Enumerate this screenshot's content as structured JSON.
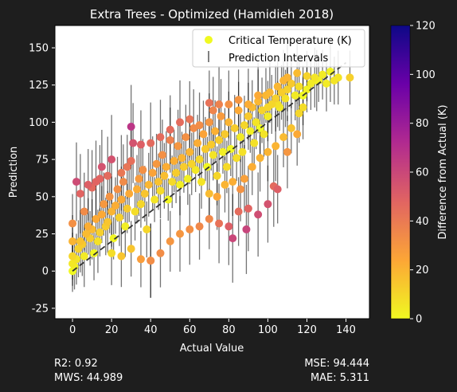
{
  "chart_data": {
    "type": "scatter",
    "title": "Extra Trees - Optimized (Hamidieh 2018)",
    "xlabel": "Actual Value",
    "ylabel": "Prediction",
    "xlim": [
      -9,
      152
    ],
    "ylim": [
      -32,
      165
    ],
    "xticks": [
      0,
      20,
      40,
      60,
      80,
      100,
      120,
      140
    ],
    "yticks": [
      -25,
      0,
      25,
      50,
      75,
      100,
      125,
      150
    ],
    "legend": {
      "placement": "top-right",
      "entries": [
        "Critical Temperature (K)",
        "Prediction Intervals"
      ]
    },
    "colorbar": {
      "label": "Difference from Actual (K)",
      "range": [
        0,
        120
      ],
      "ticks": [
        0,
        20,
        40,
        60,
        80,
        100,
        120
      ],
      "colormap": [
        "#f0f921",
        "#fca636",
        "#e16462",
        "#b12a90",
        "#6a00a8",
        "#0d0887"
      ]
    },
    "reference_line": {
      "from": [
        0,
        0
      ],
      "to": [
        140,
        140
      ],
      "style": "dashed",
      "color": "#333333"
    },
    "points": [
      [
        0,
        0
      ],
      [
        0,
        5
      ],
      [
        0,
        10
      ],
      [
        0,
        20
      ],
      [
        0,
        32
      ],
      [
        1,
        3
      ],
      [
        2,
        8
      ],
      [
        3,
        15
      ],
      [
        4,
        20
      ],
      [
        5,
        18
      ],
      [
        6,
        10
      ],
      [
        7,
        25
      ],
      [
        8,
        30
      ],
      [
        9,
        22
      ],
      [
        10,
        28
      ],
      [
        11,
        12
      ],
      [
        12,
        35
      ],
      [
        13,
        20
      ],
      [
        14,
        26
      ],
      [
        15,
        38
      ],
      [
        16,
        45
      ],
      [
        17,
        30
      ],
      [
        18,
        33
      ],
      [
        19,
        50
      ],
      [
        20,
        40
      ],
      [
        21,
        22
      ],
      [
        22,
        44
      ],
      [
        23,
        55
      ],
      [
        24,
        36
      ],
      [
        25,
        48
      ],
      [
        26,
        60
      ],
      [
        27,
        30
      ],
      [
        28,
        42
      ],
      [
        29,
        52
      ],
      [
        30,
        97
      ],
      [
        31,
        86
      ],
      [
        32,
        40
      ],
      [
        33,
        55
      ],
      [
        34,
        62
      ],
      [
        35,
        45
      ],
      [
        36,
        68
      ],
      [
        37,
        52
      ],
      [
        38,
        28
      ],
      [
        39,
        58
      ],
      [
        40,
        7
      ],
      [
        41,
        66
      ],
      [
        42,
        48
      ],
      [
        43,
        72
      ],
      [
        44,
        60
      ],
      [
        45,
        54
      ],
      [
        46,
        78
      ],
      [
        47,
        64
      ],
      [
        48,
        70
      ],
      [
        49,
        48
      ],
      [
        50,
        88
      ],
      [
        51,
        60
      ],
      [
        52,
        74
      ],
      [
        53,
        66
      ],
      [
        54,
        84
      ],
      [
        55,
        58
      ],
      [
        56,
        76
      ],
      [
        57,
        70
      ],
      [
        58,
        90
      ],
      [
        59,
        62
      ],
      [
        60,
        80
      ],
      [
        61,
        72
      ],
      [
        62,
        96
      ],
      [
        63,
        68
      ],
      [
        64,
        86
      ],
      [
        65,
        75
      ],
      [
        66,
        60
      ],
      [
        67,
        92
      ],
      [
        68,
        82
      ],
      [
        69,
        70
      ],
      [
        70,
        100
      ],
      [
        71,
        85
      ],
      [
        72,
        78
      ],
      [
        73,
        94
      ],
      [
        74,
        64
      ],
      [
        75,
        88
      ],
      [
        76,
        104
      ],
      [
        77,
        80
      ],
      [
        78,
        92
      ],
      [
        79,
        70
      ],
      [
        80,
        100
      ],
      [
        81,
        82
      ],
      [
        82,
        22
      ],
      [
        83,
        96
      ],
      [
        84,
        76
      ],
      [
        85,
        108
      ],
      [
        86,
        90
      ],
      [
        87,
        80
      ],
      [
        88,
        98
      ],
      [
        89,
        28
      ],
      [
        90,
        104
      ],
      [
        91,
        94
      ],
      [
        92,
        110
      ],
      [
        93,
        86
      ],
      [
        94,
        100
      ],
      [
        95,
        114
      ],
      [
        96,
        96
      ],
      [
        97,
        108
      ],
      [
        98,
        92
      ],
      [
        99,
        118
      ],
      [
        100,
        104
      ],
      [
        101,
        120
      ],
      [
        102,
        112
      ],
      [
        103,
        57
      ],
      [
        104,
        116
      ],
      [
        105,
        124
      ],
      [
        106,
        110
      ],
      [
        107,
        120
      ],
      [
        108,
        128
      ],
      [
        109,
        116
      ],
      [
        110,
        122
      ],
      [
        112,
        126
      ],
      [
        114,
        118
      ],
      [
        116,
        124
      ],
      [
        118,
        118
      ],
      [
        120,
        122
      ],
      [
        122,
        126
      ],
      [
        124,
        130
      ],
      [
        126,
        128
      ],
      [
        128,
        132
      ],
      [
        130,
        126
      ],
      [
        132,
        134
      ],
      [
        134,
        128
      ],
      [
        136,
        130
      ],
      [
        142,
        130
      ],
      [
        2,
        60
      ],
      [
        4,
        52
      ],
      [
        6,
        40
      ],
      [
        8,
        58
      ],
      [
        10,
        56
      ],
      [
        12,
        60
      ],
      [
        14,
        62
      ],
      [
        15,
        70
      ],
      [
        18,
        64
      ],
      [
        20,
        75
      ],
      [
        25,
        66
      ],
      [
        28,
        70
      ],
      [
        30,
        74
      ],
      [
        35,
        85
      ],
      [
        40,
        86
      ],
      [
        45,
        90
      ],
      [
        50,
        95
      ],
      [
        55,
        100
      ],
      [
        60,
        102
      ],
      [
        65,
        98
      ],
      [
        70,
        113
      ],
      [
        72,
        108
      ],
      [
        75,
        112
      ],
      [
        80,
        112
      ],
      [
        85,
        115
      ],
      [
        90,
        112
      ],
      [
        95,
        118
      ],
      [
        100,
        110
      ],
      [
        105,
        112
      ],
      [
        110,
        130
      ],
      [
        115,
        133
      ],
      [
        120,
        131
      ],
      [
        125,
        128
      ],
      [
        20,
        12
      ],
      [
        25,
        10
      ],
      [
        30,
        15
      ],
      [
        35,
        8
      ],
      [
        40,
        7
      ],
      [
        45,
        12
      ],
      [
        50,
        20
      ],
      [
        55,
        25
      ],
      [
        60,
        28
      ],
      [
        65,
        30
      ],
      [
        70,
        35
      ],
      [
        75,
        32
      ],
      [
        80,
        30
      ],
      [
        85,
        40
      ],
      [
        90,
        42
      ],
      [
        95,
        38
      ],
      [
        100,
        45
      ],
      [
        105,
        55
      ],
      [
        110,
        80
      ],
      [
        115,
        92
      ],
      [
        118,
        110
      ],
      [
        70,
        52
      ],
      [
        74,
        50
      ],
      [
        78,
        58
      ],
      [
        82,
        60
      ],
      [
        86,
        55
      ],
      [
        88,
        62
      ],
      [
        92,
        70
      ],
      [
        96,
        76
      ],
      [
        100,
        80
      ],
      [
        104,
        84
      ],
      [
        108,
        90
      ],
      [
        112,
        96
      ],
      [
        116,
        106
      ]
    ],
    "metrics": {
      "r2": "R2: 0.92",
      "mws": "MWS: 44.989",
      "mse": "MSE: 94.444",
      "mae": "MAE: 5.311"
    }
  }
}
